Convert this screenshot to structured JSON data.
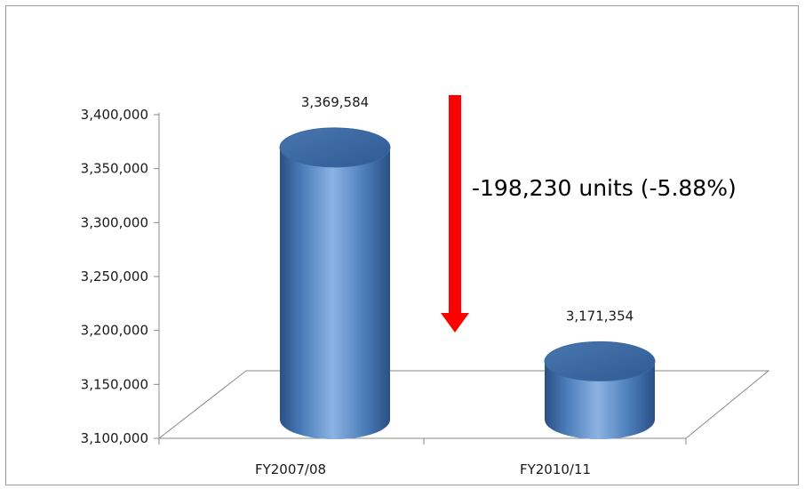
{
  "chart_data": {
    "type": "bar",
    "categories": [
      "FY2007/08",
      "FY2010/11"
    ],
    "values": [
      3369584,
      3171354
    ],
    "data_labels": [
      "3,369,584",
      "3,171,354"
    ],
    "title": "",
    "xlabel": "",
    "ylabel": "",
    "ylim": [
      3100000,
      3400000
    ],
    "y_ticks": [
      3100000,
      3150000,
      3200000,
      3250000,
      3300000,
      3350000,
      3400000
    ],
    "y_tick_labels": [
      "3,100,000",
      "3,150,000",
      "3,200,000",
      "3,250,000",
      "3,300,000",
      "3,350,000",
      "3,400,000"
    ],
    "grid": false,
    "legend": "none",
    "bar_style": "3d-cylinder",
    "annotation": {
      "text": "-198,230 units (-5.88%)",
      "arrow": "down"
    },
    "colors": {
      "bar": "#4f81bd",
      "bar_light": "#8cb2e3",
      "bar_dark": "#2a4f86",
      "arrow": "#ff0000",
      "axis": "#8a8a8a"
    }
  }
}
